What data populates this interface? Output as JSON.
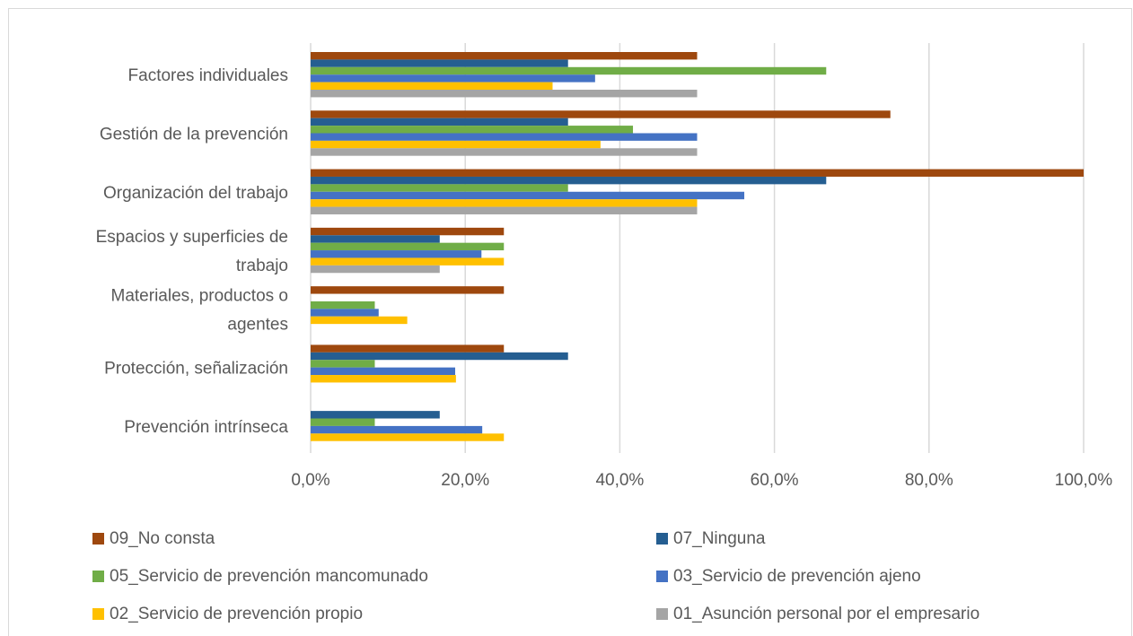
{
  "chart_data": {
    "type": "bar",
    "orientation": "horizontal",
    "title": "",
    "xlabel": "",
    "ylabel": "",
    "xlim": [
      0,
      100
    ],
    "x_ticks": [
      "0,0%",
      "20,0%",
      "40,0%",
      "60,0%",
      "80,0%",
      "100,0%"
    ],
    "grid": "vertical",
    "legend_position": "bottom",
    "categories": [
      "Factores individuales",
      "Gestión de la prevención",
      "Organización del trabajo",
      "Espacios y superficies de trabajo",
      "Materiales, productos o agentes",
      "Protección, señalización",
      "Prevención intrínseca"
    ],
    "category_label_lines": [
      [
        "Factores individuales"
      ],
      [
        "Gestión de la prevención"
      ],
      [
        "Organización del trabajo"
      ],
      [
        "Espacios y superficies de",
        "trabajo"
      ],
      [
        "Materiales, productos o",
        "agentes"
      ],
      [
        "Protección, señalización"
      ],
      [
        "Prevención intrínseca"
      ]
    ],
    "series": [
      {
        "name": "09_No consta",
        "color": "#9E480E",
        "values": [
          50.0,
          75.0,
          100.0,
          25.0,
          25.0,
          25.0,
          0
        ]
      },
      {
        "name": "07_Ninguna",
        "color": "#255E91",
        "values": [
          33.3,
          33.3,
          66.7,
          16.7,
          0,
          33.3,
          16.7
        ]
      },
      {
        "name": "05_Servicio de prevención mancomunado",
        "color": "#70AD47",
        "values": [
          66.7,
          41.7,
          33.3,
          25.0,
          8.3,
          8.3,
          8.3
        ]
      },
      {
        "name": "03_Servicio de prevención ajeno",
        "color": "#4472C4",
        "values": [
          36.8,
          50.0,
          56.1,
          22.1,
          8.8,
          18.7,
          22.2
        ]
      },
      {
        "name": "02_Servicio de prevención propio",
        "color": "#FFC000",
        "values": [
          31.3,
          37.5,
          50.0,
          25.0,
          12.5,
          18.8,
          25.0
        ]
      },
      {
        "name": "01_Asunción personal por el empresario",
        "color": "#A5A5A5",
        "values": [
          50.0,
          50.0,
          50.0,
          16.7,
          0,
          0,
          0
        ]
      }
    ]
  }
}
